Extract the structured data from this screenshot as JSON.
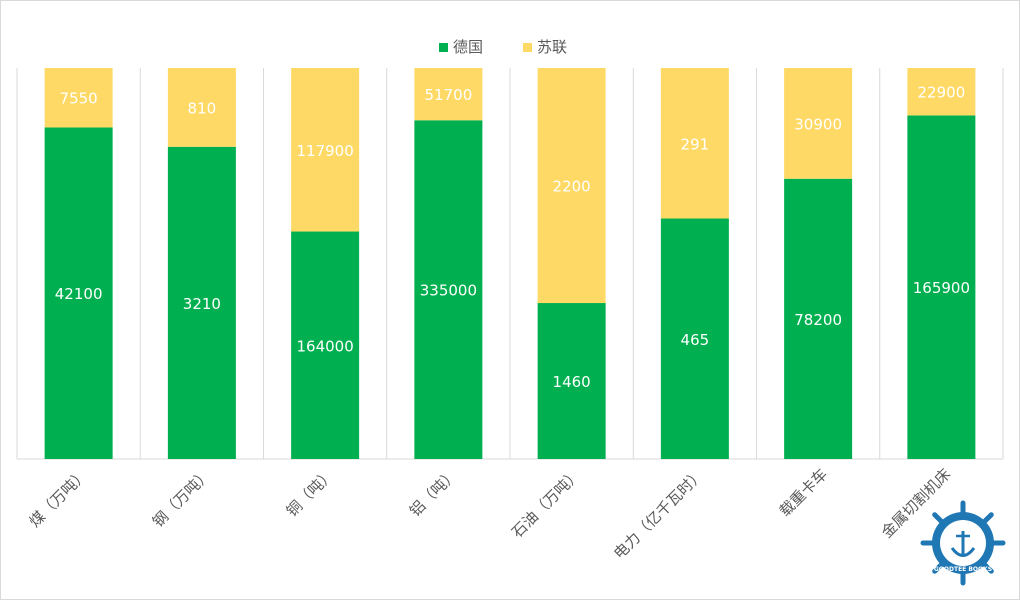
{
  "chart_data": {
    "type": "bar",
    "stacked": "percent",
    "categories": [
      "煤（万吨）",
      "钢（万吨）",
      "铜（吨）",
      "铝（吨）",
      "石油（万吨）",
      "电力（亿千瓦时）",
      "载重卡车",
      "金属切割机床"
    ],
    "series": [
      {
        "name": "德国",
        "color": "#00b050",
        "values": [
          42100,
          3210,
          164000,
          335000,
          1460,
          465,
          78200,
          165900
        ]
      },
      {
        "name": "苏联",
        "color": "#ffd966",
        "values": [
          7550,
          810,
          117900,
          51700,
          2200,
          291,
          30900,
          22900
        ]
      }
    ],
    "legend_position": "top",
    "ylim": [
      0,
      1
    ],
    "grid": "vertical-separators",
    "title": "",
    "xlabel": "",
    "ylabel": ""
  },
  "watermark": {
    "text": "GOODTEE BOOKS",
    "icon": "ship-wheel-anchor-icon"
  }
}
